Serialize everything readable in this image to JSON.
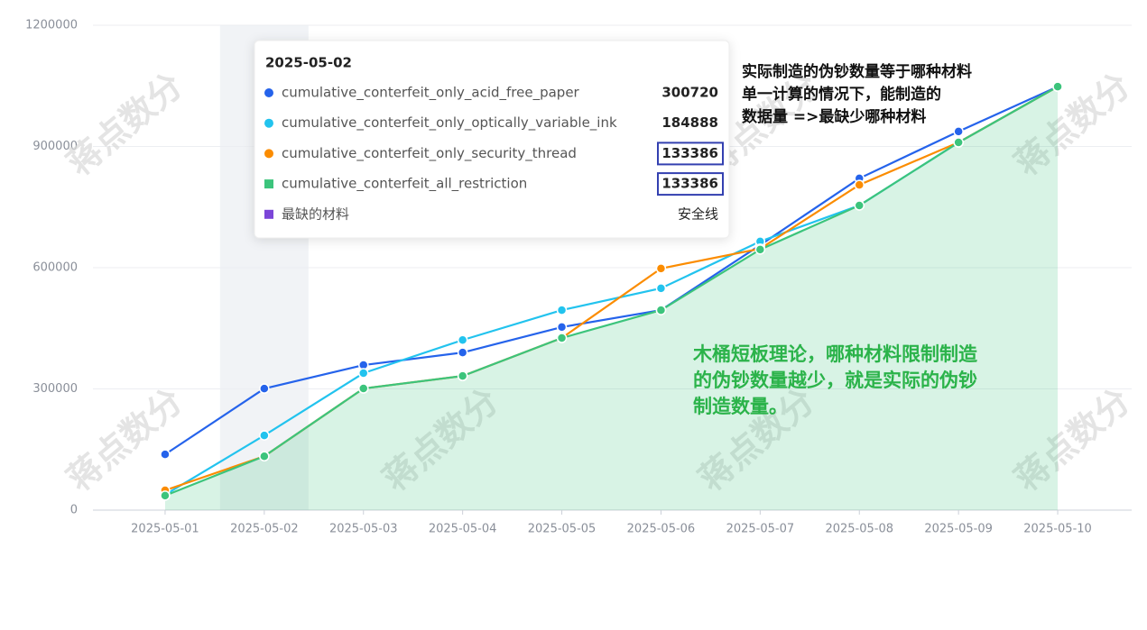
{
  "chart_data": {
    "type": "line",
    "categories": [
      "2025-05-01",
      "2025-05-02",
      "2025-05-03",
      "2025-05-04",
      "2025-05-05",
      "2025-05-06",
      "2025-05-07",
      "2025-05-08",
      "2025-05-09",
      "2025-05-10"
    ],
    "series": [
      {
        "name": "cumulative_conterfeit_only_acid_free_paper",
        "color": "#2563eb",
        "values": [
          138000,
          300720,
          359000,
          390000,
          453000,
          495000,
          656000,
          821000,
          937000,
          1048000
        ]
      },
      {
        "name": "cumulative_conterfeit_only_optically_variable_ink",
        "color": "#22c3ee",
        "values": [
          38000,
          184888,
          339000,
          421000,
          495000,
          549000,
          665000,
          754000,
          910000,
          1048000
        ]
      },
      {
        "name": "cumulative_conterfeit_only_security_thread",
        "color": "#fb8c00",
        "values": [
          49000,
          133386,
          301000,
          332000,
          426000,
          598000,
          647000,
          805000,
          910000,
          1048000
        ]
      },
      {
        "name": "cumulative_conterfeit_all_restriction",
        "color": "#3cc47c",
        "area": true,
        "values": [
          36000,
          133386,
          301000,
          332000,
          426000,
          495000,
          645000,
          754000,
          910000,
          1048000
        ]
      }
    ],
    "ylim": [
      0,
      1200000
    ],
    "yticks": [
      0,
      300000,
      600000,
      900000,
      1200000
    ],
    "grid": true,
    "tooltip": {
      "category_index": 1,
      "highlight": [
        2,
        3
      ],
      "extra": {
        "name": "最缺的材料",
        "color": "#7b45d8",
        "label": "安全线"
      }
    },
    "annotations": [
      {
        "lines": [
          "实际制造的伪钞数量等于哪种材料",
          "单一计算的情况下，能制造的",
          "数据量 =>最缺少哪种材料"
        ],
        "color": "#111111"
      },
      {
        "lines": [
          "木桶短板理论，哪种材料限制制造",
          "的伪钞数量越少，就是实际的伪钞",
          "制造数量。"
        ],
        "color": "#2bb34a"
      }
    ],
    "watermark": "蒋点数分"
  }
}
